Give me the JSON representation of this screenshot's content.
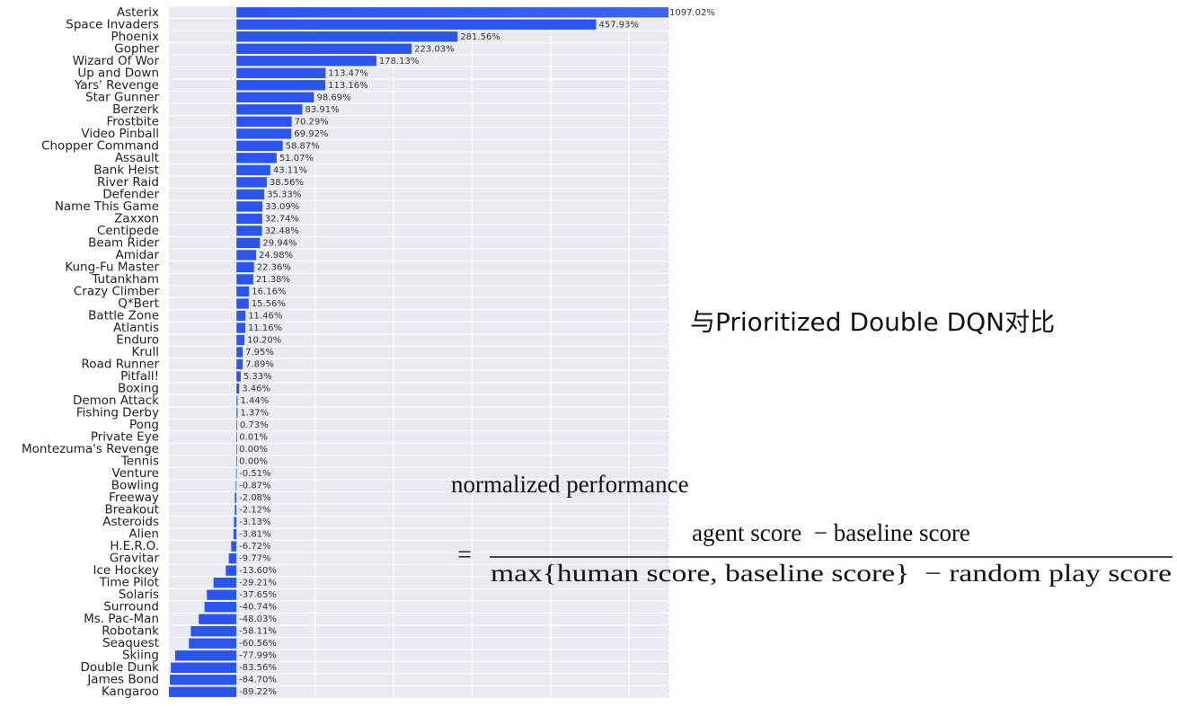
{
  "chart_data": {
    "type": "barh",
    "categories": [
      "Asterix",
      "Space Invaders",
      "Phoenix",
      "Gopher",
      "Wizard Of Wor",
      "Up and Down",
      "Yars' Revenge",
      "Star Gunner",
      "Berzerk",
      "Frostbite",
      "Video Pinball",
      "Chopper Command",
      "Assault",
      "Bank Heist",
      "River Raid",
      "Defender",
      "Name This Game",
      "Zaxxon",
      "Centipede",
      "Beam Rider",
      "Amidar",
      "Kung-Fu Master",
      "Tutankham",
      "Crazy Climber",
      "Q*Bert",
      "Battle Zone",
      "Atlantis",
      "Enduro",
      "Krull",
      "Road Runner",
      "Pitfall!",
      "Boxing",
      "Demon Attack",
      "Fishing Derby",
      "Pong",
      "Private Eye",
      "Montezuma's Revenge",
      "Tennis",
      "Venture",
      "Bowling",
      "Freeway",
      "Breakout",
      "Asteroids",
      "Alien",
      "H.E.R.O.",
      "Gravitar",
      "Ice Hockey",
      "Time Pilot",
      "Solaris",
      "Surround",
      "Ms. Pac-Man",
      "Robotank",
      "Seaquest",
      "Skiing",
      "Double Dunk",
      "James Bond",
      "Kangaroo"
    ],
    "values": [
      1097.02,
      457.93,
      281.56,
      223.03,
      178.13,
      113.47,
      113.16,
      98.69,
      83.91,
      70.29,
      69.92,
      58.87,
      51.07,
      43.11,
      38.56,
      35.33,
      33.09,
      32.74,
      32.48,
      29.94,
      24.98,
      22.36,
      21.38,
      16.16,
      15.56,
      11.46,
      11.16,
      10.2,
      7.95,
      7.89,
      5.33,
      3.46,
      1.44,
      1.37,
      0.73,
      0.01,
      0.0,
      0.0,
      -0.51,
      -0.87,
      -2.08,
      -2.12,
      -3.13,
      -3.81,
      -6.72,
      -9.77,
      -13.6,
      -29.21,
      -37.65,
      -40.74,
      -48.03,
      -58.11,
      -60.56,
      -77.99,
      -83.56,
      -84.7,
      -89.22
    ],
    "value_labels": [
      "1097.02%",
      "457.93%",
      "281.56%",
      "223.03%",
      "178.13%",
      "113.47%",
      "113.16%",
      "98.69%",
      "83.91%",
      "70.29%",
      "69.92%",
      "58.87%",
      "51.07%",
      "43.11%",
      "38.56%",
      "35.33%",
      "33.09%",
      "32.74%",
      "32.48%",
      "29.94%",
      "24.98%",
      "22.36%",
      "21.38%",
      "16.16%",
      "15.56%",
      "11.46%",
      "11.16%",
      "10.20%",
      "7.95%",
      "7.89%",
      "5.33%",
      "3.46%",
      "1.44%",
      "1.37%",
      "0.73%",
      "0.01%",
      "0.00%",
      "0.00%",
      "-0.51%",
      "-0.87%",
      "-2.08%",
      "-2.12%",
      "-3.13%",
      "-3.81%",
      "-6.72%",
      "-9.77%",
      "-13.60%",
      "-29.21%",
      "-37.65%",
      "-40.74%",
      "-48.03%",
      "-58.11%",
      "-60.56%",
      "-77.99%",
      "-83.56%",
      "-84.70%",
      "-89.22%"
    ],
    "color": "#2a55ee",
    "xlim": [
      -86,
      550
    ],
    "xticks": [
      0,
      100,
      200,
      300,
      400,
      500
    ],
    "grid": true,
    "annotations": {
      "heading": "与Prioritized Double DQN对比",
      "formula_lhs": "normalized performance",
      "equals": "=",
      "numerator": "agent score  − baseline score",
      "denominator": "max{human score, baseline score}  − random play score"
    }
  }
}
